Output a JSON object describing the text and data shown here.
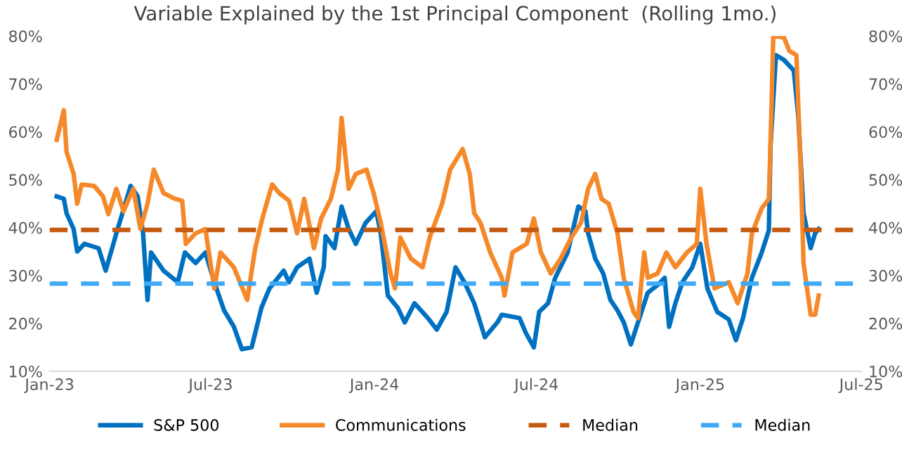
{
  "chart_data": {
    "type": "line",
    "title": "Variable Explained by the 1st Principal Component  (Rolling 1mo.)",
    "xlim": [
      "2023-01-01",
      "2025-07-01"
    ],
    "xticks": [
      {
        "value": "2023-01-01",
        "label": "Jan-23"
      },
      {
        "value": "2023-07-01",
        "label": "Jul-23"
      },
      {
        "value": "2024-01-01",
        "label": "Jan-24"
      },
      {
        "value": "2024-07-01",
        "label": "Jul-24"
      },
      {
        "value": "2025-01-01",
        "label": "Jan-25"
      },
      {
        "value": "2025-07-01",
        "label": "Jul-25"
      }
    ],
    "ylim": [
      10,
      80
    ],
    "yticks": [
      {
        "value": 10,
        "label": "10%"
      },
      {
        "value": 20,
        "label": "20%"
      },
      {
        "value": 30,
        "label": "30%"
      },
      {
        "value": 40,
        "label": "40%"
      },
      {
        "value": 50,
        "label": "50%"
      },
      {
        "value": 60,
        "label": "60%"
      },
      {
        "value": 70,
        "label": "70%"
      },
      {
        "value": 80,
        "label": "80%"
      }
    ],
    "y2lim": [
      10,
      80
    ],
    "y2ticks": [
      {
        "value": 10,
        "label": "10%"
      },
      {
        "value": 20,
        "label": "20%"
      },
      {
        "value": 30,
        "label": "30%"
      },
      {
        "value": 40,
        "label": "40%"
      },
      {
        "value": 50,
        "label": "50%"
      },
      {
        "value": 60,
        "label": "60%"
      },
      {
        "value": 70,
        "label": "70%"
      },
      {
        "value": 80,
        "label": "80%"
      }
    ],
    "grid": false,
    "legend": "bottom",
    "marker": "none",
    "line_style": "solid",
    "series": [
      {
        "name": "S&P 500",
        "color": "#0070c0",
        "x": [
          "2023-01-09",
          "2023-01-17",
          "2023-01-20",
          "2023-01-28",
          "2023-02-01",
          "2023-02-09",
          "2023-02-25",
          "2023-03-05",
          "2023-03-17",
          "2023-04-02",
          "2023-04-10",
          "2023-04-16",
          "2023-04-21",
          "2023-04-25",
          "2023-05-09",
          "2023-05-25",
          "2023-06-02",
          "2023-06-14",
          "2023-06-25",
          "2023-07-05",
          "2023-07-16",
          "2023-07-27",
          "2023-08-05",
          "2023-08-16",
          "2023-08-27",
          "2023-09-05",
          "2023-09-21",
          "2023-09-27",
          "2023-10-06",
          "2023-10-20",
          "2023-10-28",
          "2023-11-05",
          "2023-11-07",
          "2023-11-17",
          "2023-11-25",
          "2023-12-03",
          "2023-12-11",
          "2023-12-22",
          "2024-01-03",
          "2024-01-08",
          "2024-01-16",
          "2024-01-27",
          "2024-02-04",
          "2024-02-15",
          "2024-03-01",
          "2024-03-11",
          "2024-03-22",
          "2024-04-01",
          "2024-04-11",
          "2024-04-22",
          "2024-05-04",
          "2024-05-18",
          "2024-05-23",
          "2024-06-12",
          "2024-06-19",
          "2024-06-28",
          "2024-07-04",
          "2024-07-14",
          "2024-07-22",
          "2024-08-05",
          "2024-08-17",
          "2024-08-25",
          "2024-08-28",
          "2024-09-05",
          "2024-09-14",
          "2024-09-22",
          "2024-09-30",
          "2024-10-07",
          "2024-10-15",
          "2024-10-23",
          "2024-11-03",
          "2024-11-14",
          "2024-11-22",
          "2024-11-27",
          "2024-12-04",
          "2024-12-12",
          "2024-12-23",
          "2025-01-01",
          "2025-01-09",
          "2025-01-20",
          "2025-02-02",
          "2025-02-10",
          "2025-02-18",
          "2025-02-28",
          "2025-03-11",
          "2025-03-19",
          "2025-03-21",
          "2025-03-27",
          "2025-04-05",
          "2025-04-16",
          "2025-04-21",
          "2025-04-27",
          "2025-05-05",
          "2025-05-10",
          "2025-05-14"
        ],
        "values": [
          46.5,
          46,
          43,
          39.7,
          35,
          36.6,
          35.7,
          31,
          38.8,
          48.7,
          46.5,
          38.8,
          24.9,
          34.8,
          31,
          28.6,
          34.8,
          32.6,
          34.8,
          28.6,
          22.7,
          19.3,
          14.6,
          15,
          23.3,
          27.3,
          31,
          28.6,
          31.7,
          33.5,
          26.4,
          31.7,
          38.2,
          35.7,
          44.4,
          39.7,
          36.6,
          41,
          43.4,
          38.8,
          25.8,
          23.3,
          20.2,
          24.2,
          21.1,
          18.7,
          22.4,
          31.7,
          28.6,
          24.2,
          17.1,
          20.2,
          21.8,
          21.1,
          18,
          15,
          22.4,
          24.2,
          29.5,
          34.8,
          44.4,
          43.4,
          38.8,
          33.5,
          30.4,
          24.9,
          22.7,
          20.2,
          15.6,
          20.2,
          26.4,
          28,
          29.5,
          19.3,
          24.2,
          28.6,
          31.7,
          36.6,
          27.3,
          22.4,
          20.8,
          16.5,
          21.1,
          29.5,
          34.8,
          39.4,
          57.4,
          76,
          75,
          72.8,
          63.5,
          43,
          35.7,
          38.8,
          39.7
        ]
      },
      {
        "name": "Communications",
        "color": "#f5892a",
        "x": [
          "2023-01-09",
          "2023-01-17",
          "2023-01-20",
          "2023-01-28",
          "2023-02-01",
          "2023-02-06",
          "2023-02-20",
          "2023-03-02",
          "2023-03-08",
          "2023-03-17",
          "2023-03-25",
          "2023-04-05",
          "2023-04-13",
          "2023-04-21",
          "2023-04-28",
          "2023-05-09",
          "2023-05-22",
          "2023-05-30",
          "2023-06-03",
          "2023-06-14",
          "2023-06-25",
          "2023-07-05",
          "2023-07-12",
          "2023-07-27",
          "2023-08-11",
          "2023-08-20",
          "2023-08-28",
          "2023-09-08",
          "2023-09-16",
          "2023-09-27",
          "2023-10-06",
          "2023-10-14",
          "2023-10-25",
          "2023-11-02",
          "2023-11-13",
          "2023-11-21",
          "2023-11-25",
          "2023-12-03",
          "2023-12-11",
          "2023-12-23",
          "2023-12-31",
          "2024-01-08",
          "2024-01-19",
          "2024-01-24",
          "2024-01-30",
          "2024-02-11",
          "2024-02-24",
          "2024-03-03",
          "2024-03-17",
          "2024-03-26",
          "2024-04-09",
          "2024-04-17",
          "2024-04-22",
          "2024-04-29",
          "2024-05-10",
          "2024-05-23",
          "2024-05-26",
          "2024-06-04",
          "2024-06-20",
          "2024-06-28",
          "2024-07-06",
          "2024-07-17",
          "2024-07-28",
          "2024-08-09",
          "2024-08-20",
          "2024-08-28",
          "2024-09-05",
          "2024-09-12",
          "2024-09-20",
          "2024-09-30",
          "2024-10-07",
          "2024-10-18",
          "2024-10-23",
          "2024-10-30",
          "2024-11-03",
          "2024-11-14",
          "2024-11-24",
          "2024-12-04",
          "2024-12-17",
          "2024-12-28",
          "2025-01-01",
          "2025-01-08",
          "2025-01-17",
          "2025-02-02",
          "2025-02-12",
          "2025-02-23",
          "2025-02-28",
          "2025-03-11",
          "2025-03-19",
          "2025-03-21",
          "2025-03-24",
          "2025-04-05",
          "2025-04-11",
          "2025-04-19",
          "2025-04-24",
          "2025-04-27",
          "2025-05-05",
          "2025-05-10",
          "2025-05-14"
        ],
        "values": [
          58.3,
          64.5,
          55.8,
          51.2,
          45,
          49,
          48.7,
          46.5,
          42.8,
          48.1,
          43.4,
          48.1,
          39.7,
          45,
          52.1,
          47.2,
          46,
          45.6,
          36.6,
          38.8,
          39.7,
          27.3,
          34.8,
          31.7,
          24.9,
          35.7,
          41.9,
          49,
          47.2,
          45.6,
          38.8,
          46,
          35.7,
          41.9,
          46,
          52.1,
          62.9,
          48.1,
          51.2,
          52.1,
          47.2,
          41,
          30.4,
          27.3,
          37.9,
          33.5,
          31.7,
          37.9,
          45,
          52.1,
          56.4,
          51.2,
          43,
          41,
          34.8,
          29.5,
          25.8,
          34.8,
          36.6,
          41.9,
          34.8,
          30.4,
          33.5,
          37.9,
          41,
          48.1,
          51.2,
          46,
          45,
          38.8,
          29.5,
          22.4,
          21.1,
          34.8,
          29.5,
          30.4,
          34.8,
          31.7,
          34.8,
          36.6,
          48.1,
          36.6,
          27.3,
          28.6,
          24.2,
          30.4,
          38.8,
          44,
          46,
          58.3,
          80,
          79.7,
          76.9,
          76,
          51.2,
          32.6,
          21.8,
          21.8,
          25.8
        ]
      }
    ],
    "ref_lines": [
      {
        "axis": "y",
        "value": 39.5,
        "label": "Median",
        "color": "#c55a11",
        "line_style": "dashed"
      },
      {
        "axis": "y",
        "value": 28.3,
        "label": "Median",
        "color": "#3fa9f5",
        "line_style": "dashed"
      }
    ]
  }
}
